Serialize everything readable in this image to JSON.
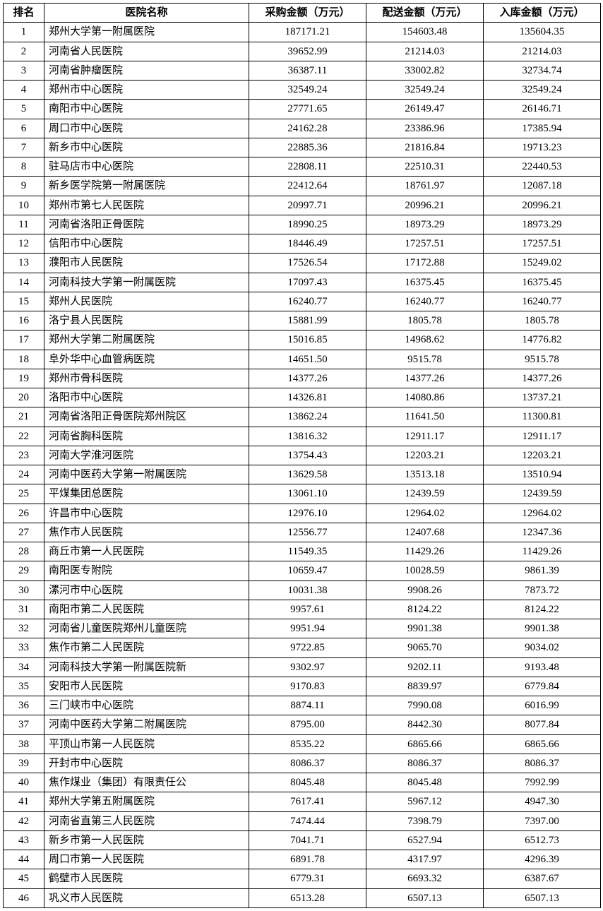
{
  "table": {
    "columns": [
      "排名",
      "医院名称",
      "采购金额（万元）",
      "配送金额（万元）",
      "入库金额（万元）"
    ],
    "rows": [
      [
        "1",
        "郑州大学第一附属医院",
        "187171.21",
        "154603.48",
        "135604.35"
      ],
      [
        "2",
        "河南省人民医院",
        "39652.99",
        "21214.03",
        "21214.03"
      ],
      [
        "3",
        "河南省肿瘤医院",
        "36387.11",
        "33002.82",
        "32734.74"
      ],
      [
        "4",
        "郑州市中心医院",
        "32549.24",
        "32549.24",
        "32549.24"
      ],
      [
        "5",
        "南阳市中心医院",
        "27771.65",
        "26149.47",
        "26146.71"
      ],
      [
        "6",
        "周口市中心医院",
        "24162.28",
        "23386.96",
        "17385.94"
      ],
      [
        "7",
        "新乡市中心医院",
        "22885.36",
        "21816.84",
        "19713.23"
      ],
      [
        "8",
        "驻马店市中心医院",
        "22808.11",
        "22510.31",
        "22440.53"
      ],
      [
        "9",
        "新乡医学院第一附属医院",
        "22412.64",
        "18761.97",
        "12087.18"
      ],
      [
        "10",
        "郑州市第七人民医院",
        "20997.71",
        "20996.21",
        "20996.21"
      ],
      [
        "11",
        "河南省洛阳正骨医院",
        "18990.25",
        "18973.29",
        "18973.29"
      ],
      [
        "12",
        "信阳市中心医院",
        "18446.49",
        "17257.51",
        "17257.51"
      ],
      [
        "13",
        "濮阳市人民医院",
        "17526.54",
        "17172.88",
        "15249.02"
      ],
      [
        "14",
        "河南科技大学第一附属医院",
        "17097.43",
        "16375.45",
        "16375.45"
      ],
      [
        "15",
        "郑州人民医院",
        "16240.77",
        "16240.77",
        "16240.77"
      ],
      [
        "16",
        "洛宁县人民医院",
        "15881.99",
        "1805.78",
        "1805.78"
      ],
      [
        "17",
        "郑州大学第二附属医院",
        "15016.85",
        "14968.62",
        "14776.82"
      ],
      [
        "18",
        "阜外华中心血管病医院",
        "14651.50",
        "9515.78",
        "9515.78"
      ],
      [
        "19",
        "郑州市骨科医院",
        "14377.26",
        "14377.26",
        "14377.26"
      ],
      [
        "20",
        "洛阳市中心医院",
        "14326.81",
        "14080.86",
        "13737.21"
      ],
      [
        "21",
        "河南省洛阳正骨医院郑州院区",
        "13862.24",
        "11641.50",
        "11300.81"
      ],
      [
        "22",
        "河南省胸科医院",
        "13816.32",
        "12911.17",
        "12911.17"
      ],
      [
        "23",
        "河南大学淮河医院",
        "13754.43",
        "12203.21",
        "12203.21"
      ],
      [
        "24",
        "河南中医药大学第一附属医院",
        "13629.58",
        "13513.18",
        "13510.94"
      ],
      [
        "25",
        "平煤集团总医院",
        "13061.10",
        "12439.59",
        "12439.59"
      ],
      [
        "26",
        "许昌市中心医院",
        "12976.10",
        "12964.02",
        "12964.02"
      ],
      [
        "27",
        "焦作市人民医院",
        "12556.77",
        "12407.68",
        "12347.36"
      ],
      [
        "28",
        "商丘市第一人民医院",
        "11549.35",
        "11429.26",
        "11429.26"
      ],
      [
        "29",
        "南阳医专附院",
        "10659.47",
        "10028.59",
        "9861.39"
      ],
      [
        "30",
        "漯河市中心医院",
        "10031.38",
        "9908.26",
        "7873.72"
      ],
      [
        "31",
        "南阳市第二人民医院",
        "9957.61",
        "8124.22",
        "8124.22"
      ],
      [
        "32",
        "河南省儿童医院郑州儿童医院",
        "9951.94",
        "9901.38",
        "9901.38"
      ],
      [
        "33",
        "焦作市第二人民医院",
        "9722.85",
        "9065.70",
        "9034.02"
      ],
      [
        "34",
        "河南科技大学第一附属医院新",
        "9302.97",
        "9202.11",
        "9193.48"
      ],
      [
        "35",
        "安阳市人民医院",
        "9170.83",
        "8839.97",
        "6779.84"
      ],
      [
        "36",
        "三门峡市中心医院",
        "8874.11",
        "7990.08",
        "6016.99"
      ],
      [
        "37",
        "河南中医药大学第二附属医院",
        "8795.00",
        "8442.30",
        "8077.84"
      ],
      [
        "38",
        "平顶山市第一人民医院",
        "8535.22",
        "6865.66",
        "6865.66"
      ],
      [
        "39",
        "开封市中心医院",
        "8086.37",
        "8086.37",
        "8086.37"
      ],
      [
        "40",
        "焦作煤业（集团）有限责任公",
        "8045.48",
        "8045.48",
        "7992.99"
      ],
      [
        "41",
        "郑州大学第五附属医院",
        "7617.41",
        "5967.12",
        "4947.30"
      ],
      [
        "42",
        "河南省直第三人民医院",
        "7474.44",
        "7398.79",
        "7397.00"
      ],
      [
        "43",
        "新乡市第一人民医院",
        "7041.71",
        "6527.94",
        "6512.73"
      ],
      [
        "44",
        "周口市第一人民医院",
        "6891.78",
        "4317.97",
        "4296.39"
      ],
      [
        "45",
        "鹤壁市人民医院",
        "6779.31",
        "6693.32",
        "6387.67"
      ],
      [
        "46",
        "巩义市人民医院",
        "6513.28",
        "6507.13",
        "6507.13"
      ]
    ]
  }
}
